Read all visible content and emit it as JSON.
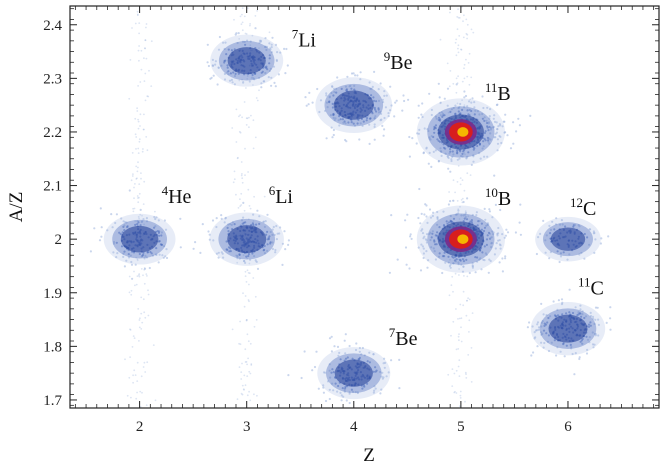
{
  "chart_data": {
    "type": "heatmap",
    "title": "",
    "xlabel": "Z",
    "ylabel": "A/Z",
    "xlim": [
      1.35,
      6.85
    ],
    "ylim": [
      1.685,
      2.435
    ],
    "xticks": [
      2,
      3,
      4,
      5,
      6
    ],
    "yticks": [
      1.7,
      1.8,
      1.9,
      2.0,
      2.1,
      2.2,
      2.3,
      2.4
    ],
    "xtick_labels": [
      "2",
      "3",
      "4",
      "5",
      "6"
    ],
    "ytick_labels": [
      "1.7",
      "1.8",
      "1.9",
      "2",
      "2.1",
      "2.2",
      "2.3",
      "2.4"
    ],
    "grid": false,
    "colorscale": [
      "#e6ecf8",
      "#9fb4de",
      "#3f62b8",
      "#1d3a96",
      "#7a2a8a",
      "#d81e1e",
      "#f5b800"
    ],
    "clusters": [
      {
        "mass": "4",
        "element": "He",
        "z": 2.0,
        "a_over_z": 2.0,
        "relative_intensity": 0.35
      },
      {
        "mass": "6",
        "element": "Li",
        "z": 3.0,
        "a_over_z": 2.0,
        "relative_intensity": 0.45
      },
      {
        "mass": "7",
        "element": "Li",
        "z": 3.0,
        "a_over_z": 2.333,
        "relative_intensity": 0.4
      },
      {
        "mass": "7",
        "element": "Be",
        "z": 4.0,
        "a_over_z": 1.75,
        "relative_intensity": 0.4
      },
      {
        "mass": "9",
        "element": "Be",
        "z": 4.0,
        "a_over_z": 2.25,
        "relative_intensity": 0.55
      },
      {
        "mass": "10",
        "element": "B",
        "z": 5.0,
        "a_over_z": 2.0,
        "relative_intensity": 1.0
      },
      {
        "mass": "11",
        "element": "B",
        "z": 5.0,
        "a_over_z": 2.2,
        "relative_intensity": 1.0
      },
      {
        "mass": "11",
        "element": "C",
        "z": 6.0,
        "a_over_z": 1.833,
        "relative_intensity": 0.45
      },
      {
        "mass": "12",
        "element": "C",
        "z": 6.0,
        "a_over_z": 2.0,
        "relative_intensity": 0.1
      }
    ],
    "labels": [
      {
        "mass": "4",
        "element": "He"
      },
      {
        "mass": "6",
        "element": "Li"
      },
      {
        "mass": "7",
        "element": "Li"
      },
      {
        "mass": "7",
        "element": "Be"
      },
      {
        "mass": "9",
        "element": "Be"
      },
      {
        "mass": "10",
        "element": "B"
      },
      {
        "mass": "11",
        "element": "B"
      },
      {
        "mass": "11",
        "element": "C"
      },
      {
        "mass": "12",
        "element": "C"
      }
    ]
  }
}
